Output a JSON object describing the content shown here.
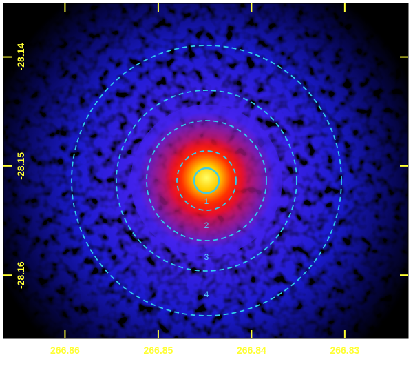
{
  "chart_data": {
    "type": "image",
    "xlim": [
      266.8666,
      266.8232
    ],
    "xticks": [
      266.86,
      266.85,
      266.84,
      266.83
    ],
    "ylim": [
      -28.1658,
      -28.1351
    ],
    "yticks": [
      -28.14,
      -28.15,
      -28.16
    ],
    "annotations": [
      "1",
      "2",
      "3",
      "4"
    ]
  }
}
